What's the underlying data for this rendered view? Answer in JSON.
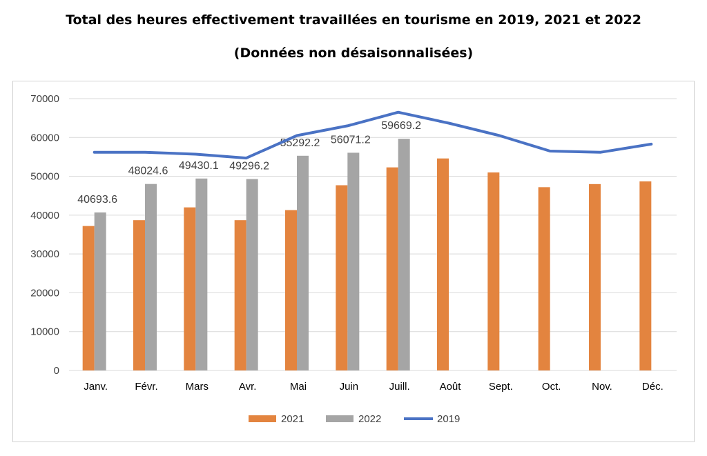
{
  "chart_data": {
    "type": "bar",
    "title": "Total des heures effectivement travaillées en tourisme en 2019, 2021 et 2022",
    "subtitle": "(Données non désaisonnalisées)",
    "categories": [
      "Janv.",
      "Févr.",
      "Mars",
      "Avr.",
      "Mai",
      "Juin",
      "Juill.",
      "Août",
      "Sept.",
      "Oct.",
      "Nov.",
      "Déc."
    ],
    "ylim": [
      0,
      70000
    ],
    "yticks": [
      0,
      10000,
      20000,
      30000,
      40000,
      50000,
      60000,
      70000
    ],
    "grid": true,
    "legend_position": "bottom",
    "series": [
      {
        "name": "2021",
        "type": "bar",
        "color": "#E3843F",
        "values": [
          37200,
          38700,
          42000,
          38700,
          41300,
          47700,
          52300,
          54600,
          51000,
          47200,
          48000,
          48700
        ]
      },
      {
        "name": "2022",
        "type": "bar",
        "color": "#A5A5A5",
        "values": [
          40693.6,
          48024.6,
          49430.1,
          49296.2,
          55292.2,
          56071.2,
          59669.2,
          null,
          null,
          null,
          null,
          null
        ],
        "data_labels": [
          "40693.6",
          "48024.6",
          "49430.1",
          "49296.2",
          "55292.2",
          "56071.2",
          "59669.2"
        ]
      },
      {
        "name": "2019",
        "type": "line",
        "color": "#4A72C4",
        "values": [
          56200,
          56200,
          55700,
          54700,
          60500,
          63000,
          66500,
          63700,
          60500,
          56500,
          56200,
          58300
        ]
      }
    ]
  }
}
